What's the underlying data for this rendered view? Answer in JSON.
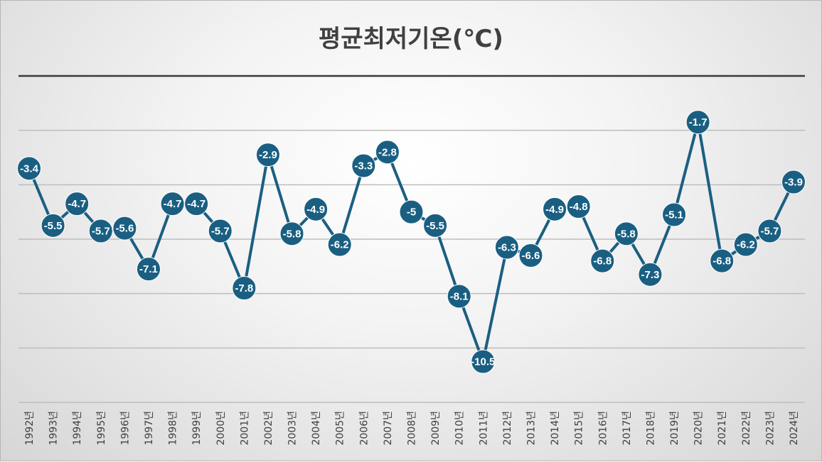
{
  "chart_data": {
    "type": "line",
    "title": "평균최저기온(℃)",
    "xlabel": "",
    "ylabel": "",
    "categories": [
      "1992년",
      "1993년",
      "1994년",
      "1995년",
      "1996년",
      "1997년",
      "1998년",
      "1999년",
      "2000년",
      "2001년",
      "2002년",
      "2003년",
      "2004년",
      "2005년",
      "2006년",
      "2007년",
      "2008년",
      "2009년",
      "2010년",
      "2011년",
      "2012년",
      "2013년",
      "2014년",
      "2015년",
      "2016년",
      "2017년",
      "2018년",
      "2019년",
      "2020년",
      "2021년",
      "2022년",
      "2023년",
      "2024년"
    ],
    "series": [
      {
        "values": [
          -3.4,
          -5.5,
          -4.7,
          -5.7,
          -5.6,
          -7.1,
          -4.7,
          -4.7,
          -5.7,
          -7.8,
          -2.9,
          -5.8,
          -4.9,
          -6.2,
          -3.3,
          -2.8,
          -5,
          -5.5,
          -8.1,
          -10.5,
          -6.3,
          -6.6,
          -4.9,
          -4.8,
          -6.8,
          -5.8,
          -7.3,
          -5.1,
          -1.7,
          -6.8,
          -6.2,
          -5.7,
          -3.9
        ],
        "labels": [
          "-3.4",
          "-5.5",
          "-4.7",
          "-5.7",
          "-5.6",
          "-7.1",
          "-4.7",
          "-4.7",
          "-5.7",
          "-7.8",
          "-2.9",
          "-5.8",
          "-4.9",
          "-6.2",
          "-3.3",
          "-2.8",
          "-5",
          "-5.5",
          "-8.1",
          "-10.5",
          "-6.3",
          "-6.6",
          "-4.9",
          "-4.8",
          "-6.8",
          "-5.8",
          "-7.3",
          "-5.1",
          "-1.7",
          "-6.8",
          "-6.2",
          "-5.7",
          "-3.9"
        ],
        "color": "#1a5f82"
      }
    ],
    "ylim": [
      -12,
      0
    ],
    "y_gridlines": [
      -2,
      -4,
      -6,
      -8,
      -10,
      -12
    ],
    "grid": true,
    "legend": "none",
    "line_color": "#1a5f82",
    "marker_label_color": "#ffffff"
  }
}
